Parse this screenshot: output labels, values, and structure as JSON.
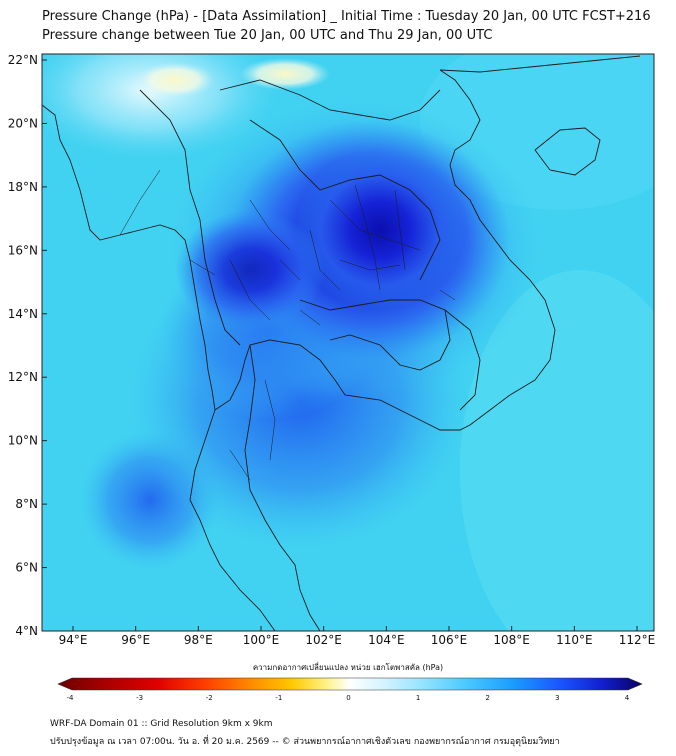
{
  "title": {
    "line1": "Pressure Change (hPa) - [Data Assimilation] _ Initial Time : Tuesday 20 Jan, 00 UTC FCST+216",
    "line2": "Pressure change between Tue 20 Jan, 00 UTC and Thu 29 Jan, 00 UTC"
  },
  "map": {
    "lat_ticks": [
      "4°N",
      "6°N",
      "8°N",
      "10°N",
      "12°N",
      "14°N",
      "16°N",
      "18°N",
      "20°N",
      "22°N"
    ],
    "lon_ticks": [
      "94°E",
      "96°E",
      "98°E",
      "100°E",
      "102°E",
      "104°E",
      "106°E",
      "108°E",
      "110°E",
      "112°E"
    ],
    "field_max_center": "deep blue over northeast Thailand / Laos",
    "colors": {
      "background_field": "#3fd3f2",
      "max_field": "#0a12b8",
      "positive_small": "#f4f9d0",
      "border": "#1c1c1c"
    }
  },
  "colorbar": {
    "title": "ความกดอากาศเปลี่ยนแปลง หน่วย เฮกโตพาสคัล (hPa)",
    "ticks": [
      "-4",
      "-3",
      "-2",
      "-1",
      "0",
      "1",
      "2",
      "3",
      "4"
    ],
    "colors": [
      "#6b0000",
      "#c80000",
      "#ff2a00",
      "#ff7a00",
      "#ffc400",
      "#fff200",
      "#ffffff",
      "#c6f0ff",
      "#5fd7ff",
      "#1aa3ff",
      "#1a4dff",
      "#0a12b8",
      "#0b0063"
    ]
  },
  "footer": {
    "line1": "WRF-DA Domain 01 :: Grid Resolution 9km x 9km",
    "line2": "ปรับปรุงข้อมูล ณ เวลา 07:00น. วัน อ. ที่ 20 ม.ค. 2569 -- © ส่วนพยากรณ์อากาศเชิงตัวเลข กองพยากรณ์อากาศ กรมอุตุนิยมวิทยา"
  }
}
